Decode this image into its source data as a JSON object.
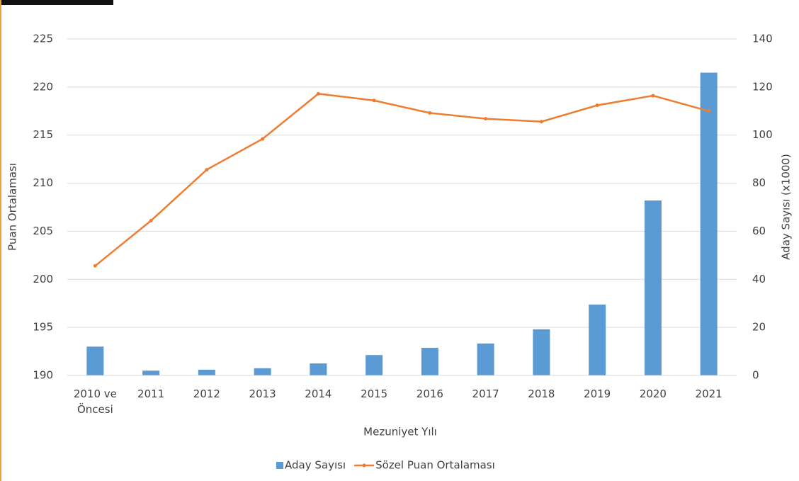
{
  "chart_data": {
    "type": "bar_line",
    "x_label": "Mezuniyet Yılı",
    "y_label": "Puan Ortalaması",
    "y2_label": "Aday Sayısı (x1000)",
    "categories": [
      "2010 ve Öncesi",
      "2011",
      "2012",
      "2013",
      "2014",
      "2015",
      "2016",
      "2017",
      "2018",
      "2019",
      "2020",
      "2021"
    ],
    "series": [
      {
        "name": "Aday Sayısı",
        "type": "bar",
        "axis": "y2",
        "color": "#5b9bd5",
        "values": [
          12,
          2,
          2.4,
          3,
          5,
          8.5,
          11.5,
          13.3,
          19.2,
          29.5,
          72.8,
          126
        ]
      },
      {
        "name": "Sözel Puan Ortalaması",
        "type": "line",
        "axis": "y",
        "color": "#ed7d31",
        "values": [
          201.4,
          206.1,
          211.4,
          214.6,
          219.3,
          218.6,
          217.3,
          216.7,
          216.4,
          218.1,
          219.1,
          217.5
        ]
      }
    ],
    "ylim": [
      190,
      225
    ],
    "yticks": [
      190,
      195,
      200,
      205,
      210,
      215,
      220,
      225
    ],
    "y2lim": [
      0,
      140
    ],
    "y2ticks": [
      0,
      20,
      40,
      60,
      80,
      100,
      120,
      140
    ],
    "grid": true,
    "legend": "bottom"
  }
}
